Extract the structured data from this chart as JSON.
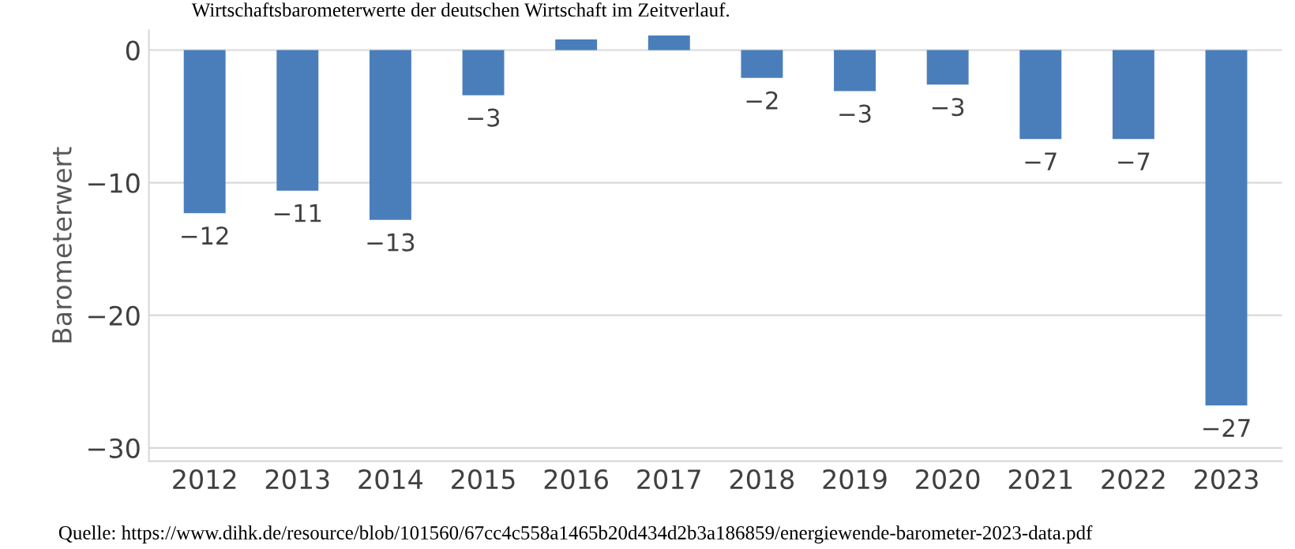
{
  "chart_data": {
    "type": "bar",
    "title": "Wirtschaftsbarometerwerte der deutschen Wirtschaft im Zeitverlauf.",
    "ylabel": "Barometerwert",
    "categories": [
      "2012",
      "2013",
      "2014",
      "2015",
      "2016",
      "2017",
      "2018",
      "2019",
      "2020",
      "2021",
      "2022",
      "2023"
    ],
    "values": [
      -12.3,
      -10.6,
      -12.8,
      -3.4,
      0.8,
      1.1,
      -2.1,
      -3.1,
      -2.6,
      -6.7,
      -6.7,
      -26.8
    ],
    "value_labels": [
      "−12",
      "−11",
      "−13",
      "−3",
      null,
      null,
      "−2",
      "−3",
      "−3",
      "−7",
      "−7",
      "−27"
    ],
    "color": "#4a7ebb",
    "ylim": [
      -31,
      1.5
    ],
    "yticks": [
      {
        "value": 0,
        "label": "0"
      },
      {
        "value": -10,
        "label": "−10"
      },
      {
        "value": -20,
        "label": "−20"
      },
      {
        "value": -30,
        "label": "−30"
      }
    ],
    "grid": "y",
    "annotations": [
      "Quelle: https://www.dihk.de/resource/blob/101560/67cc4c558a1465b20d434d2b3a186859/energiewende-barometer-2023-data.pdf"
    ]
  }
}
